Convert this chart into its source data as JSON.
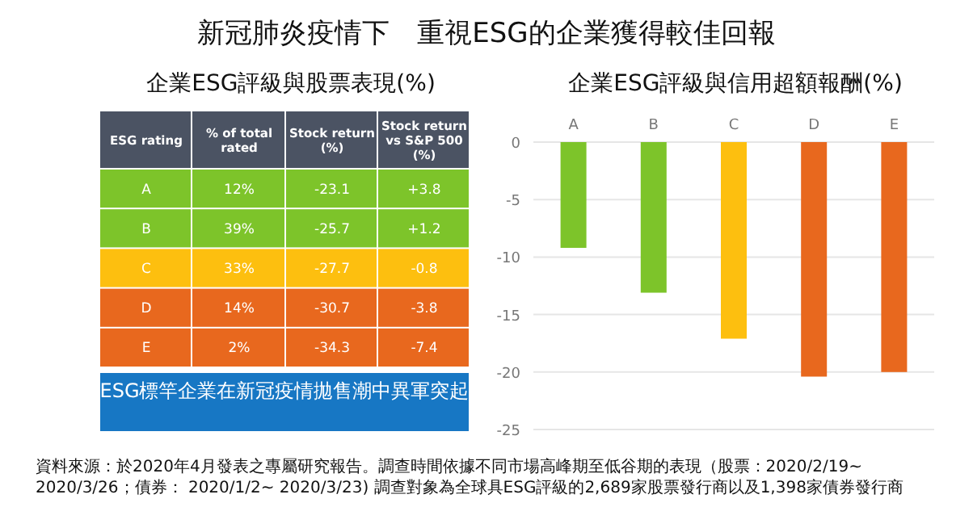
{
  "chart_data": [
    {
      "type": "other",
      "title": "新冠肺炎疫情下　重視ESG的企業獲得較佳回報",
      "subtitle": "企業ESG評級與股票表現(%)",
      "colors": [
        "#4b5363",
        "#7dc42a",
        "#7dc42a",
        "#fdbf0f",
        "#e8681e",
        "#e8681e",
        "#1777c4"
      ],
      "annotations": [
        "ESG rating",
        "% of total rated",
        "Stock return (%)",
        "Stock return vs S&P 500 (%)",
        "A",
        "12%",
        "-23.1",
        "+3.8",
        "B",
        "39%",
        "-25.7",
        "+1.2",
        "C",
        "33%",
        "-27.7",
        "-0.8",
        "D",
        "14%",
        "-30.7",
        "-3.8",
        "E",
        "2%",
        "-34.3",
        "-7.4",
        "ESG標竿企業在新冠疫情拋售潮中異軍突起",
        "資料來源：於2020年4月發表之專屬研究報告。調查時間依據不同市場高峰期至低谷期的表現（股票：2020/2/19~ 2020/3/26；債券： 2020/1/2~ 2020/3/23) 調查對象為全球具ESG評級的2,689家股票發行商以及1,398家債券發行商"
      ]
    },
    {
      "type": "bar",
      "title": "企業ESG評級與信用超額報酬(%)",
      "categories": [
        "A",
        "B",
        "C",
        "D",
        "E"
      ],
      "values": [
        -9.2,
        -13.1,
        -17.1,
        -20.4,
        -20.0
      ],
      "colors": [
        "#7dc42a",
        "#7dc42a",
        "#fdbf0f",
        "#e8681e",
        "#e8681e"
      ],
      "ylim": [
        -25,
        0
      ],
      "yticks": [
        -25,
        -20,
        -15,
        -10,
        -5,
        0
      ],
      "grid": "y"
    }
  ]
}
